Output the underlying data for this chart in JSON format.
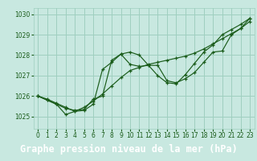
{
  "title": "Graphe pression niveau de la mer (hPa)",
  "bg_color": "#c8e8e0",
  "plot_bg_color": "#c8e8e0",
  "label_bg_color": "#2d6b3c",
  "grid_color": "#9fcfbf",
  "line_color": "#1a5c1a",
  "xlim": [
    -0.5,
    23.5
  ],
  "ylim": [
    1024.4,
    1030.3
  ],
  "yticks": [
    1025,
    1026,
    1027,
    1028,
    1029,
    1030
  ],
  "xticks": [
    0,
    1,
    2,
    3,
    4,
    5,
    6,
    7,
    8,
    9,
    10,
    11,
    12,
    13,
    14,
    15,
    16,
    17,
    18,
    19,
    20,
    21,
    22,
    23
  ],
  "series": [
    [
      1026.0,
      1025.85,
      1025.65,
      1025.45,
      1025.25,
      1025.45,
      1025.75,
      1026.1,
      1026.5,
      1026.9,
      1027.25,
      1027.4,
      1027.55,
      1027.65,
      1027.75,
      1027.85,
      1027.95,
      1028.1,
      1028.3,
      1028.55,
      1028.8,
      1029.05,
      1029.3,
      1029.8
    ],
    [
      1026.0,
      1025.8,
      1025.6,
      1025.1,
      1025.25,
      1025.3,
      1025.6,
      1027.3,
      1027.65,
      1028.05,
      1028.15,
      1028.0,
      1027.5,
      1027.5,
      1026.75,
      1026.65,
      1026.85,
      1027.15,
      1027.65,
      1028.15,
      1028.2,
      1029.0,
      1029.3,
      1029.65
    ],
    [
      1026.0,
      1025.8,
      1025.6,
      1025.4,
      1025.3,
      1025.35,
      1025.85,
      1026.0,
      1027.75,
      1028.05,
      1027.55,
      1027.45,
      1027.5,
      1027.0,
      1026.65,
      1026.6,
      1027.05,
      1027.6,
      1028.15,
      1028.5,
      1029.0,
      1029.25,
      1029.5,
      1029.8
    ]
  ],
  "title_fontsize": 8.5,
  "tick_fontsize": 5.5,
  "label_text_color": "#ffffff"
}
